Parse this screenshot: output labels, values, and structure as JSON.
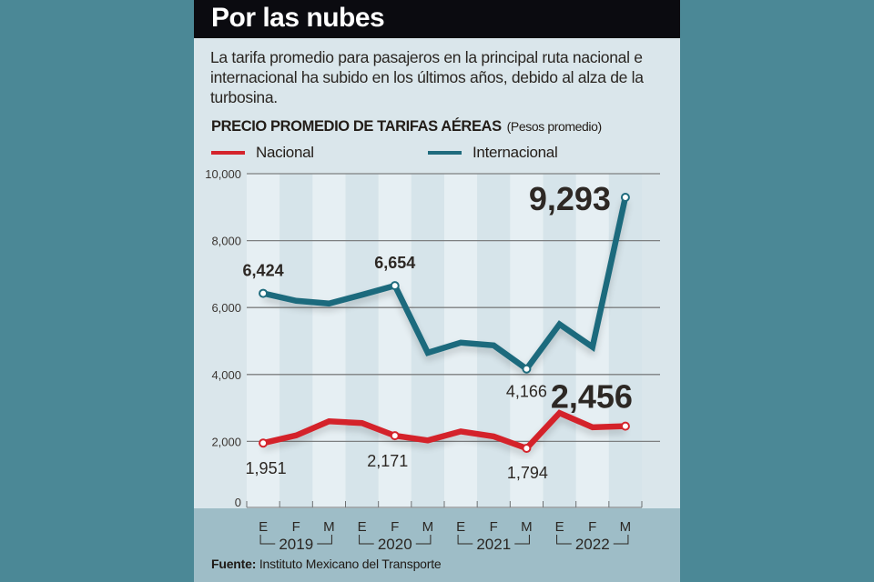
{
  "header": {
    "title": "Por las nubes"
  },
  "subtitle": "La tarifa promedio para pasajeros en la principal ruta nacional e internacional ha subido en los últimos años, debido al alza de la turbosina.",
  "chart_heading": "PRECIO PROMEDIO DE TARIFAS AÉREAS",
  "chart_unit": "(Pesos promedio)",
  "source_label": "Fuente:",
  "source_text": "Instituto Mexicano del Transporte",
  "colors": {
    "nacional": "#d4242c",
    "internacional": "#1f6b7d",
    "background": "#4b8896",
    "panel": "#dae6eb"
  },
  "chart_data": {
    "type": "line",
    "title": "PRECIO PROMEDIO DE TARIFAS AÉREAS",
    "subtitle": "(Pesos promedio)",
    "xlabel": "",
    "ylabel": "",
    "ylim": [
      0,
      10000
    ],
    "yticks": [
      0,
      2000,
      4000,
      6000,
      8000,
      10000
    ],
    "ytick_labels": [
      "0",
      "2,000",
      "4,000",
      "6,000",
      "8,000",
      "10,000"
    ],
    "grid": true,
    "legend_position": "top",
    "categories": [
      "E 2019",
      "F 2019",
      "M 2019",
      "E 2020",
      "F 2020",
      "M 2020",
      "E 2021",
      "F 2021",
      "M 2021",
      "E 2022",
      "F 2022",
      "M 2022"
    ],
    "month_labels": [
      "E",
      "F",
      "M",
      "E",
      "F",
      "M",
      "E",
      "F",
      "M",
      "E",
      "F",
      "M"
    ],
    "year_labels": [
      "2019",
      "2020",
      "2021",
      "2022"
    ],
    "series": [
      {
        "name": "Nacional",
        "color": "#d4242c",
        "values": [
          1951,
          2180,
          2600,
          2550,
          2171,
          2030,
          2300,
          2150,
          1794,
          2850,
          2420,
          2456
        ]
      },
      {
        "name": "Internacional",
        "color": "#1f6b7d",
        "values": [
          6424,
          6200,
          6120,
          6380,
          6654,
          4650,
          4950,
          4870,
          4166,
          5500,
          4820,
          9293
        ]
      }
    ],
    "annotations": [
      {
        "series": "Internacional",
        "index": 0,
        "text": "6,424",
        "emphasis": false
      },
      {
        "series": "Internacional",
        "index": 4,
        "text": "6,654",
        "emphasis": false
      },
      {
        "series": "Internacional",
        "index": 8,
        "text": "4,166",
        "emphasis": false
      },
      {
        "series": "Internacional",
        "index": 11,
        "text": "9,293",
        "emphasis": true
      },
      {
        "series": "Nacional",
        "index": 0,
        "text": "1,951",
        "emphasis": false
      },
      {
        "series": "Nacional",
        "index": 4,
        "text": "2,171",
        "emphasis": false
      },
      {
        "series": "Nacional",
        "index": 8,
        "text": "1,794",
        "emphasis": false
      },
      {
        "series": "Nacional",
        "index": 11,
        "text": "2,456",
        "emphasis": true
      }
    ]
  }
}
